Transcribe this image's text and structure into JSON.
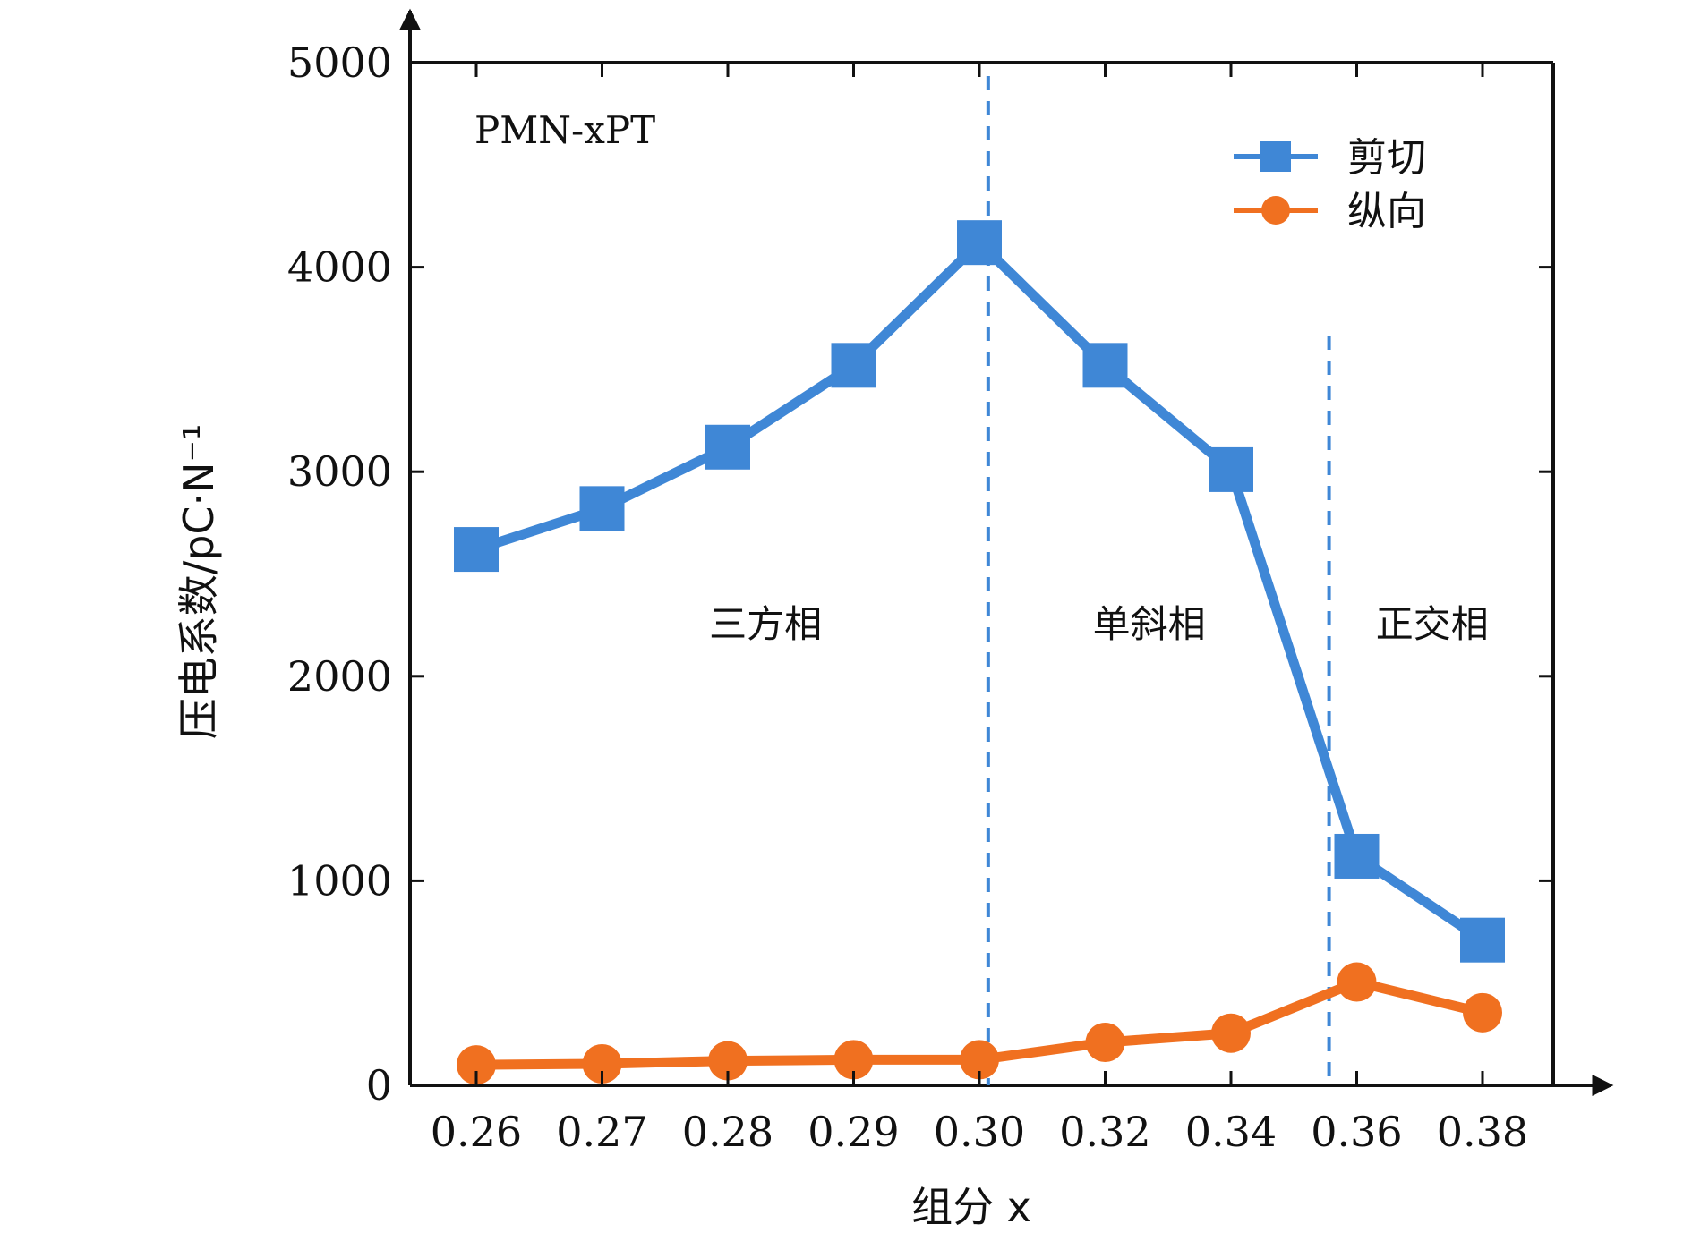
{
  "chart_data": {
    "type": "line",
    "categories": [
      "0.26",
      "0.27",
      "0.28",
      "0.29",
      "0.30",
      "0.32",
      "0.34",
      "0.36",
      "0.38"
    ],
    "series": [
      {
        "name": "剪切",
        "color": "#3f87d6",
        "marker": "square",
        "values": [
          2620,
          2820,
          3120,
          3520,
          4120,
          3520,
          3010,
          1120,
          710
        ]
      },
      {
        "name": "纵向",
        "color": "#f07020",
        "marker": "circle",
        "values": [
          100,
          105,
          120,
          125,
          125,
          210,
          255,
          505,
          355
        ]
      }
    ],
    "ylim": [
      0,
      5000
    ],
    "yticks": [
      0,
      1000,
      2000,
      3000,
      4000,
      5000
    ],
    "ytick_labels": [
      "0",
      "1000",
      "2000",
      "3000",
      "4000",
      "5000"
    ],
    "xlabel": "组分 x",
    "ylabel": "压电系数/pC·N⁻¹",
    "annotation_label": "PMN-xPT",
    "phase_regions": [
      {
        "label": "三方相",
        "center_index": 2.3
      },
      {
        "label": "单斜相",
        "center_index": 5.35
      },
      {
        "label": "正交相",
        "center_index": 7.6
      }
    ],
    "phase_boundaries_index": [
      4.07,
      6.78
    ],
    "boundary_color": "#3f87d6",
    "legend_position": "top-right",
    "grid": false
  }
}
